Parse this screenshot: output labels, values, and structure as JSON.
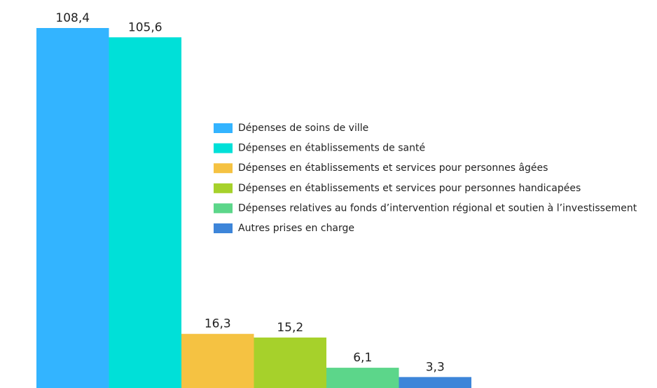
{
  "chart_data": {
    "type": "bar",
    "categories": [
      "Dépenses de soins de ville",
      "Dépenses en établissements de santé",
      "Dépenses en établissements et services pour personnes âgées",
      "Dépenses en établissements et services pour personnes handicapées",
      "Dépenses relatives au fonds d’intervention régional et soutien à l’investissement",
      "Autres prises en charge"
    ],
    "values": [
      108.4,
      105.6,
      16.3,
      15.2,
      6.1,
      3.3
    ],
    "value_labels": [
      "108,4",
      "105,6",
      "16,3",
      "15,2",
      "6,1",
      "3,3"
    ],
    "colors": [
      "#33b4ff",
      "#00e0d8",
      "#f5c242",
      "#a6d12b",
      "#5cd68a",
      "#3d85d9"
    ]
  }
}
